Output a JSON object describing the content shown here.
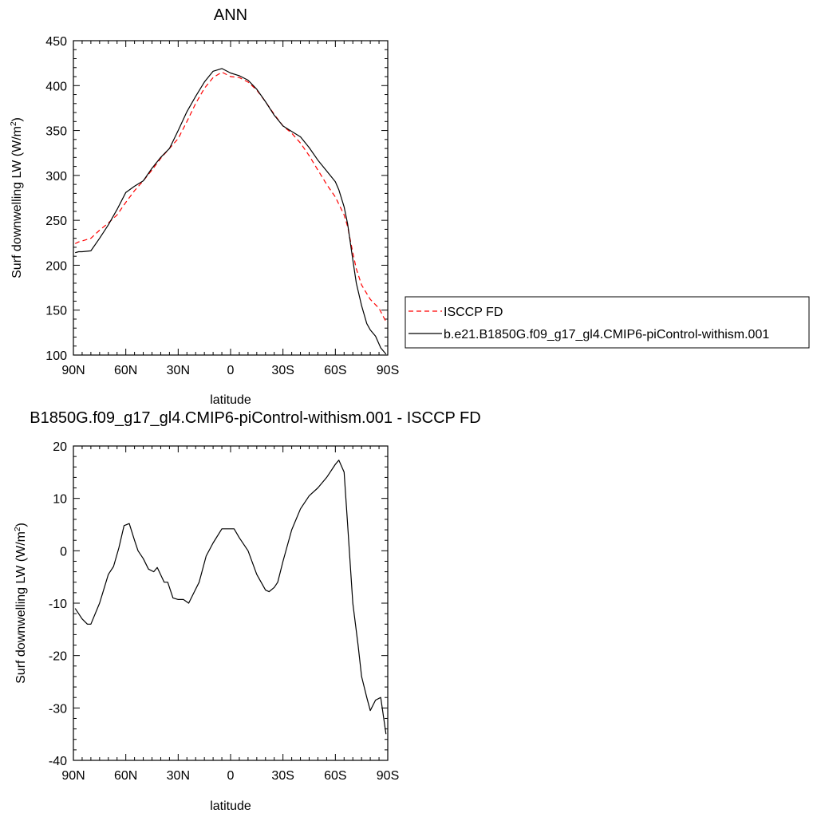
{
  "chart_data": [
    {
      "type": "line",
      "title": "ANN",
      "xlabel": "latitude",
      "ylabel": "Surf downwelling LW (W/m",
      "ylabel_sup": "2",
      "ylabel_tail": ")",
      "xlim": [
        90,
        -90
      ],
      "ylim": [
        100,
        450
      ],
      "yticks": [
        100,
        150,
        200,
        250,
        300,
        350,
        400,
        450
      ],
      "xticks": [
        90,
        60,
        30,
        0,
        -30,
        -60,
        -90
      ],
      "xtick_labels": [
        "90N",
        "60N",
        "30N",
        "0",
        "30S",
        "60S",
        "90S"
      ],
      "legend_position": "right",
      "series": [
        {
          "name": "ISCCP FD",
          "color": "#ff0000",
          "style": "dashed",
          "lat": [
            89,
            87,
            85,
            80,
            75,
            70,
            65,
            60,
            55,
            50,
            45,
            40,
            35,
            30,
            25,
            20,
            15,
            10,
            5,
            0,
            -5,
            -10,
            -15,
            -20,
            -25,
            -30,
            -35,
            -40,
            -45,
            -50,
            -55,
            -60,
            -62,
            -65,
            -67,
            -70,
            -72,
            -75,
            -80,
            -85,
            -89
          ],
          "values": [
            224,
            226,
            227,
            230,
            239,
            247,
            256,
            270,
            283,
            294,
            306,
            319,
            330,
            341,
            360,
            380,
            397,
            409,
            415,
            410,
            409,
            404,
            395,
            382,
            368,
            355,
            347,
            336,
            322,
            306,
            290,
            276,
            268,
            256,
            243,
            214,
            196,
            178,
            162,
            152,
            137
          ]
        },
        {
          "name": "b.e21.B1850G.f09_g17_gl4.CMIP6-piControl-withism.001",
          "color": "#000000",
          "style": "solid",
          "lat": [
            89,
            87,
            85,
            80,
            75,
            70,
            65,
            60,
            55,
            50,
            45,
            40,
            35,
            30,
            25,
            20,
            15,
            10,
            5,
            0,
            -5,
            -10,
            -15,
            -20,
            -25,
            -30,
            -35,
            -40,
            -45,
            -50,
            -55,
            -60,
            -62,
            -65,
            -67,
            -70,
            -72,
            -75,
            -78,
            -80,
            -83,
            -86,
            -89
          ],
          "values": [
            214,
            215,
            215,
            216,
            230,
            245,
            262,
            281,
            288,
            294,
            308,
            320,
            330,
            350,
            371,
            388,
            404,
            416,
            419,
            414,
            411,
            406,
            396,
            382,
            367,
            355,
            349,
            343,
            331,
            317,
            305,
            293,
            284,
            265,
            246,
            206,
            180,
            155,
            135,
            128,
            121,
            108,
            101
          ]
        }
      ]
    },
    {
      "type": "line",
      "title": "B1850G.f09_g17_gl4.CMIP6-piControl-withism.001 - ISCCP FD",
      "xlabel": "latitude",
      "ylabel": "Surf downwelling LW (W/m",
      "ylabel_sup": "2",
      "ylabel_tail": ")",
      "xlim": [
        90,
        -90
      ],
      "ylim": [
        -40,
        20
      ],
      "yticks": [
        -40,
        -30,
        -20,
        -10,
        0,
        10,
        20
      ],
      "xticks": [
        90,
        60,
        30,
        0,
        -30,
        -60,
        -90
      ],
      "xtick_labels": [
        "90N",
        "60N",
        "30N",
        "0",
        "30S",
        "60S",
        "90S"
      ],
      "series": [
        {
          "color": "#000000",
          "style": "solid",
          "lat": [
            89,
            85,
            82,
            80,
            75,
            70,
            67,
            64,
            61,
            58,
            55,
            53,
            50,
            47,
            44,
            42,
            38,
            36,
            33,
            30,
            27,
            24,
            21,
            18,
            14,
            10,
            5,
            2,
            -2,
            -5,
            -10,
            -15,
            -20,
            -22,
            -25,
            -27,
            -30,
            -35,
            -40,
            -45,
            -50,
            -55,
            -57,
            -60,
            -62,
            -65,
            -67,
            -70,
            -73,
            -75,
            -78,
            -80,
            -83,
            -86,
            -89
          ],
          "values": [
            -11,
            -13,
            -14,
            -14,
            -10,
            -4.5,
            -3,
            0.5,
            4.8,
            5.2,
            2,
            0,
            -1.5,
            -3.5,
            -4,
            -3.2,
            -6,
            -6,
            -9,
            -9.3,
            -9.3,
            -10,
            -8,
            -6,
            -1,
            1.5,
            4.2,
            4.2,
            4.2,
            2.5,
            0,
            -4.5,
            -7.5,
            -7.8,
            -7,
            -6,
            -2,
            4,
            8,
            10.5,
            12,
            14,
            15,
            16.5,
            17.3,
            15,
            5,
            -10,
            -18,
            -24,
            -28,
            -30.5,
            -28.5,
            -28,
            -35
          ]
        }
      ]
    }
  ]
}
